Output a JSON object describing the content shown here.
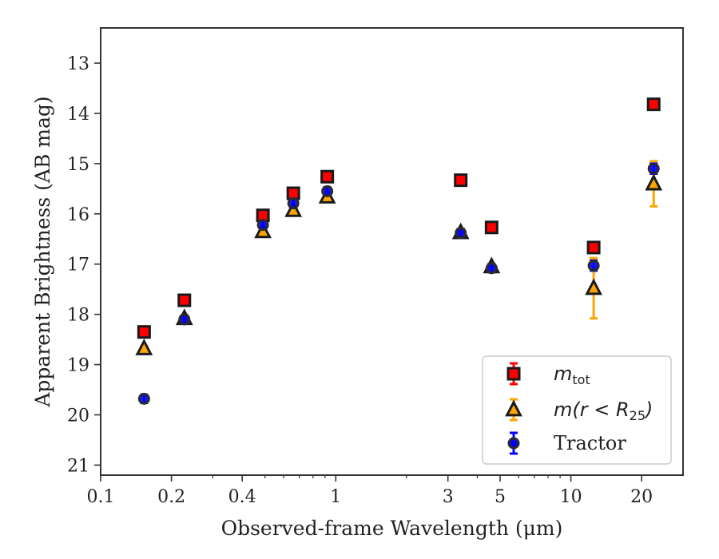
{
  "chart_data": {
    "type": "scatter",
    "xlabel": "Observed-frame Wavelength (μm)",
    "ylabel": "Apparent Brightness (AB mag)",
    "xscale": "log",
    "yaxis_inverted": true,
    "xlim": [
      0.1,
      30
    ],
    "ylim": [
      21.2,
      12.3
    ],
    "xticks": [
      0.1,
      0.2,
      0.4,
      1,
      3,
      5,
      10,
      20
    ],
    "xtick_labels": [
      "0.1",
      "0.2",
      "0.4",
      "1",
      "3",
      "5",
      "10",
      "20"
    ],
    "yticks": [
      13,
      14,
      15,
      16,
      17,
      18,
      19,
      20,
      21
    ],
    "ytick_labels": [
      "13",
      "14",
      "15",
      "16",
      "17",
      "18",
      "19",
      "20",
      "21"
    ],
    "grid": false,
    "legend_position": "lower-right",
    "series": [
      {
        "name": "m_tot",
        "marker": "square",
        "color": "#ff0000",
        "edge_color": "#1a1a1a",
        "errbar_color": "#ff0000",
        "points": [
          {
            "x": 0.153,
            "y": 18.35,
            "err": 0.05
          },
          {
            "x": 0.227,
            "y": 17.72,
            "err": 0.05
          },
          {
            "x": 0.49,
            "y": 16.03,
            "err": 0.05
          },
          {
            "x": 0.66,
            "y": 15.59,
            "err": 0.05
          },
          {
            "x": 0.92,
            "y": 15.26,
            "err": 0.05
          },
          {
            "x": 3.4,
            "y": 15.33,
            "err": 0.05
          },
          {
            "x": 4.6,
            "y": 16.27,
            "err": 0.05
          },
          {
            "x": 12.5,
            "y": 16.67,
            "err": 0.05
          },
          {
            "x": 22.5,
            "y": 13.82,
            "err": 0.05
          }
        ]
      },
      {
        "name": "m(r < R25)",
        "marker": "triangle",
        "color": "#ffa500",
        "edge_color": "#1a1a1a",
        "errbar_color": "#ffa500",
        "points": [
          {
            "x": 0.153,
            "y": 18.68,
            "err": 0.05
          },
          {
            "x": 0.227,
            "y": 18.08,
            "err": 0.05
          },
          {
            "x": 0.49,
            "y": 16.35,
            "err": 0.05
          },
          {
            "x": 0.66,
            "y": 15.93,
            "err": 0.05
          },
          {
            "x": 0.92,
            "y": 15.66,
            "err": 0.05
          },
          {
            "x": 3.4,
            "y": 16.37,
            "err": 0.05
          },
          {
            "x": 4.6,
            "y": 17.05,
            "err": 0.05
          },
          {
            "x": 12.5,
            "y": 17.48,
            "err": 0.6
          },
          {
            "x": 22.5,
            "y": 15.4,
            "err": 0.45
          }
        ]
      },
      {
        "name": "Tractor",
        "marker": "circle",
        "color": "#0000ff",
        "edge_color": "#2b2b2b",
        "errbar_color": "#0000ff",
        "points": [
          {
            "x": 0.153,
            "y": 19.68,
            "err": 0.08
          },
          {
            "x": 0.227,
            "y": 18.1,
            "err": 0.08
          },
          {
            "x": 0.49,
            "y": 16.22,
            "err": 0.08
          },
          {
            "x": 0.66,
            "y": 15.79,
            "err": 0.08
          },
          {
            "x": 0.92,
            "y": 15.55,
            "err": 0.08
          },
          {
            "x": 3.4,
            "y": 16.38,
            "err": 0.08
          },
          {
            "x": 4.6,
            "y": 17.08,
            "err": 0.08
          },
          {
            "x": 12.5,
            "y": 17.03,
            "err": 0.1
          },
          {
            "x": 22.5,
            "y": 15.1,
            "err": 0.1
          }
        ]
      }
    ],
    "legend": [
      {
        "label_main": "m",
        "label_sub": "tot",
        "marker": "square"
      },
      {
        "label_text": "m(r < R",
        "label_sub": "25",
        "label_close": ")",
        "marker": "triangle"
      },
      {
        "label_text": "Tractor",
        "marker": "circle"
      }
    ]
  }
}
